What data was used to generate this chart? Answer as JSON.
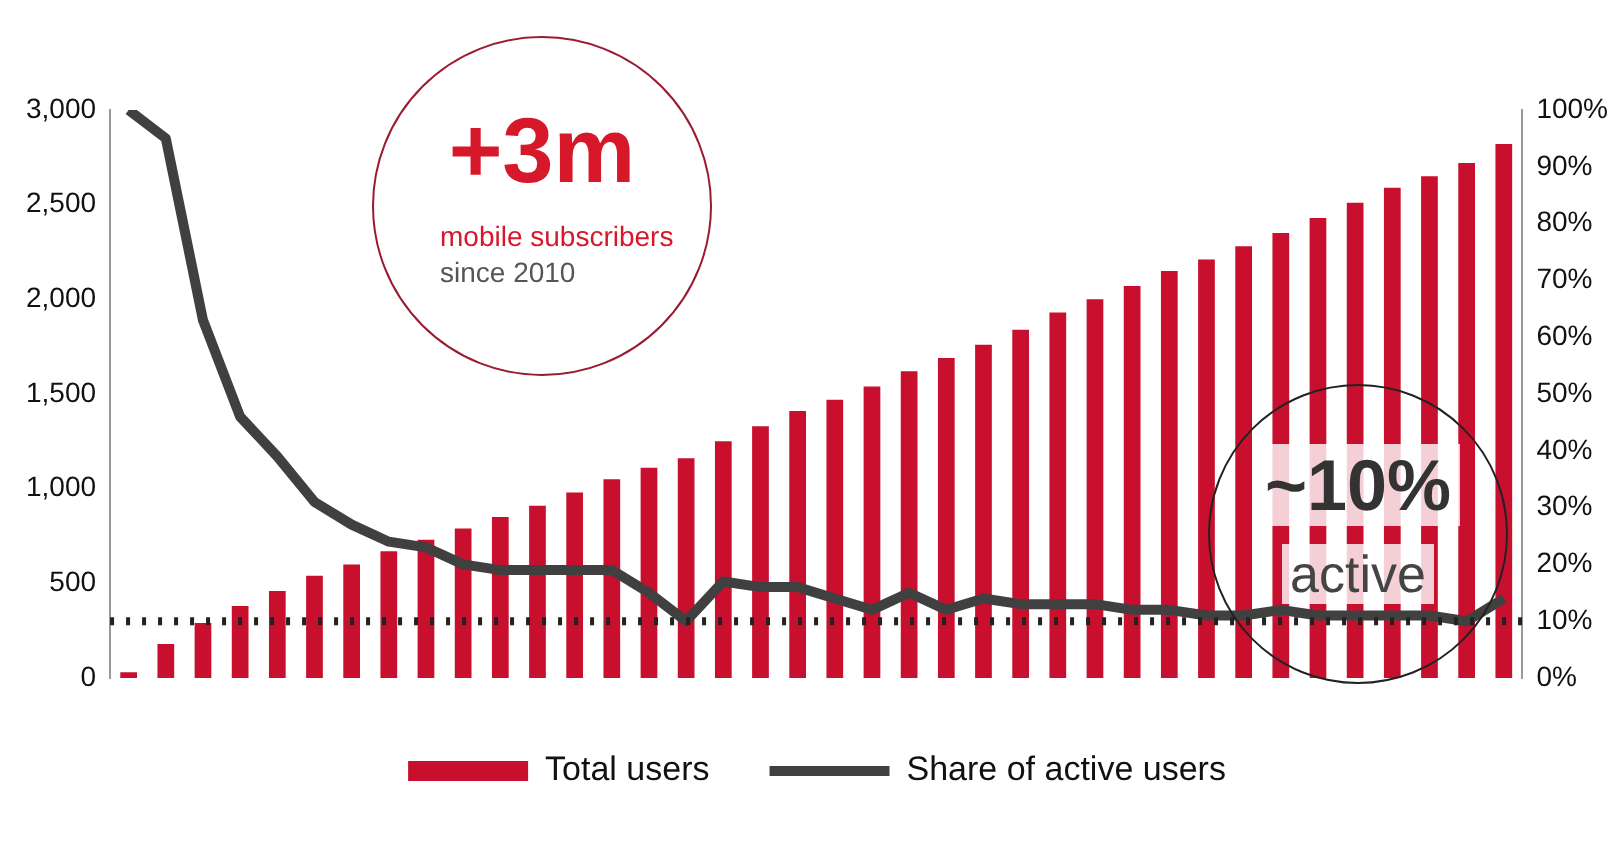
{
  "chart_data": {
    "type": "bar",
    "categories": [
      null,
      null,
      null,
      null,
      null,
      null,
      null,
      null,
      null,
      null,
      null,
      null,
      null,
      null,
      null,
      null,
      null,
      null,
      null,
      null,
      null,
      null,
      null,
      null,
      null,
      null,
      null,
      null,
      null,
      null,
      null,
      null,
      null,
      null,
      null,
      null,
      null,
      null
    ],
    "series": [
      {
        "name": "Total users",
        "color": "#c8102e",
        "values": [
          30,
          180,
          290,
          380,
          460,
          540,
          600,
          670,
          730,
          790,
          850,
          910,
          980,
          1050,
          1110,
          1160,
          1250,
          1330,
          1410,
          1470,
          1540,
          1620,
          1690,
          1760,
          1840,
          1930,
          2000,
          2070,
          2150,
          2210,
          2280,
          2350,
          2430,
          2510,
          2590,
          2650,
          2720,
          2820
        ]
      },
      {
        "name": "Share of active users",
        "type": "line",
        "axis": "y2",
        "color": "#404040",
        "values": [
          100,
          95,
          63,
          46,
          39,
          31,
          27,
          24,
          23,
          20,
          19,
          19,
          19,
          19,
          15,
          10,
          17,
          16,
          16,
          14,
          12,
          15,
          12,
          14,
          13,
          13,
          13,
          12,
          12,
          11,
          11,
          12,
          11,
          11,
          11,
          11,
          10,
          14
        ]
      }
    ],
    "ylim": [
      0,
      3000
    ],
    "yticks": [
      {
        "value": 0,
        "label": "0"
      },
      {
        "value": 500,
        "label": "500"
      },
      {
        "value": 1000,
        "label": "1,000"
      },
      {
        "value": 1500,
        "label": "1,500"
      },
      {
        "value": 2000,
        "label": "2,000"
      },
      {
        "value": 2500,
        "label": "2,500"
      },
      {
        "value": 3000,
        "label": "3,000"
      }
    ],
    "y2lim": [
      0,
      100
    ],
    "y2ticks": [
      {
        "value": 0,
        "label": "0%"
      },
      {
        "value": 10,
        "label": "10%"
      },
      {
        "value": 20,
        "label": "20%"
      },
      {
        "value": 30,
        "label": "30%"
      },
      {
        "value": 40,
        "label": "40%"
      },
      {
        "value": 50,
        "label": "50%"
      },
      {
        "value": 60,
        "label": "60%"
      },
      {
        "value": 70,
        "label": "70%"
      },
      {
        "value": 80,
        "label": "80%"
      },
      {
        "value": 90,
        "label": "90%"
      },
      {
        "value": 100,
        "label": "100%"
      }
    ],
    "ref_lines": [
      {
        "axis": "y2",
        "value": 10,
        "color": "#222222",
        "line_style": "dotted"
      }
    ],
    "annotations": [
      "+3m",
      "mobile subscribers",
      "since 2010",
      "~10%",
      "active"
    ],
    "grid": false,
    "legend": "bottom",
    "tick_labels": "y",
    "marker": "none",
    "line_style": "solid"
  }
}
